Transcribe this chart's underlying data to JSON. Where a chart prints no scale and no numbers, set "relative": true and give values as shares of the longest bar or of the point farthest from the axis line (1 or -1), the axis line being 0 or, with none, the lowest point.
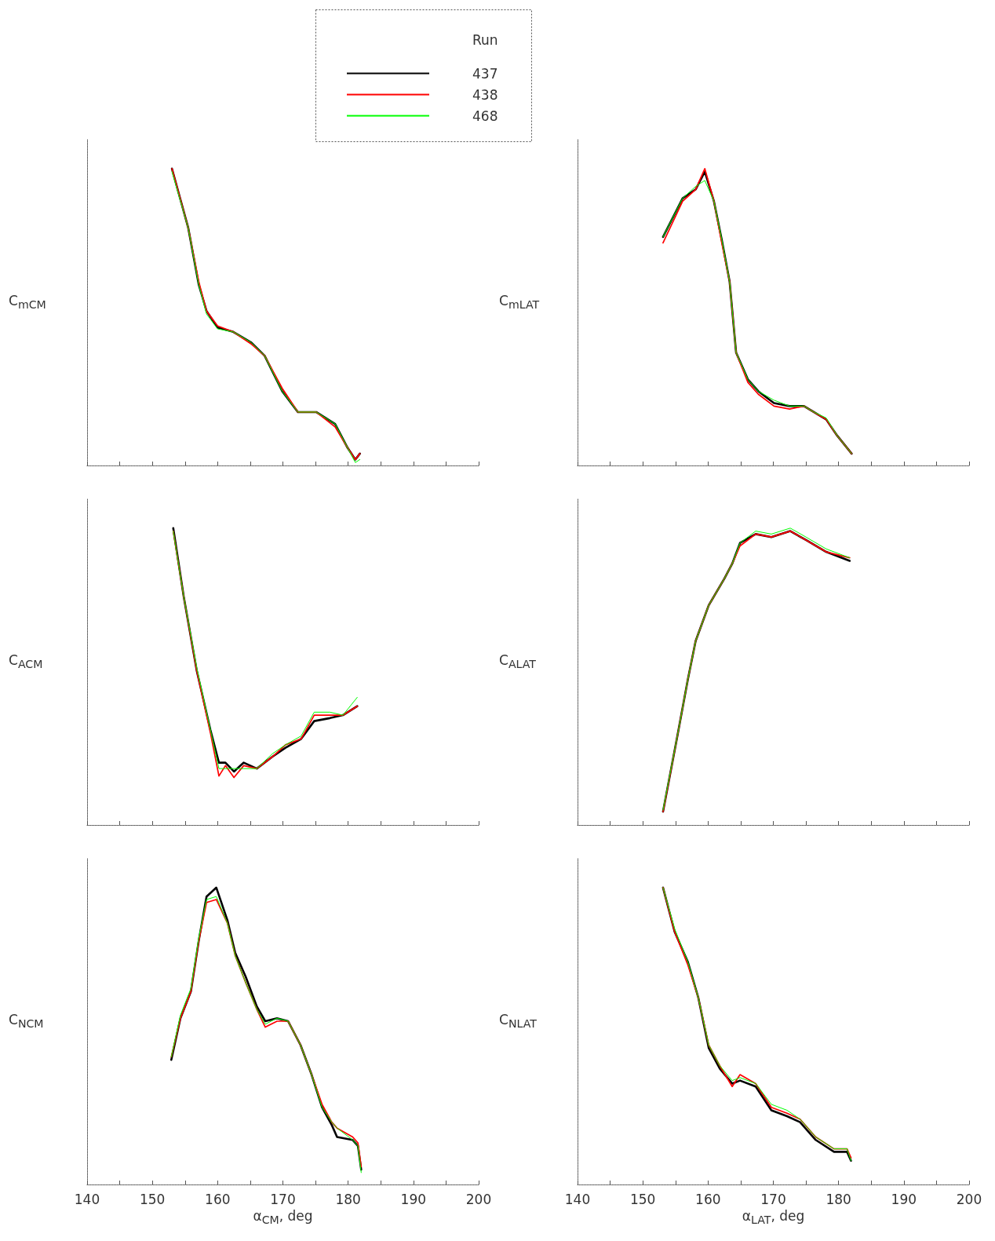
{
  "chart_data": [
    {
      "type": "line",
      "relative": true,
      "ylabel": "C$_{mCM}$",
      "legend": "top",
      "legend_title": "Run",
      "marker": "none",
      "grid": false,
      "tick_labels": false,
      "xlim": [
        140,
        200
      ],
      "xticks": [
        140,
        {
          "value": 145,
          "label": null
        },
        150,
        {
          "value": 155,
          "label": null
        },
        160,
        {
          "value": 165,
          "label": null
        },
        170,
        {
          "value": 175,
          "label": null
        },
        180,
        {
          "value": 185,
          "label": null
        },
        190,
        {
          "value": 195,
          "label": null
        },
        200
      ],
      "x": [
        153,
        155.5,
        157.1,
        158.3,
        160,
        162.4,
        165.1,
        167.2,
        169.9,
        172.3,
        175.1,
        178,
        179.9,
        181.1,
        181.8
      ],
      "series": [
        {
          "name": "437",
          "color": "#000000",
          "values": [
            1.0,
            0.8,
            0.61,
            0.52,
            0.465,
            0.45,
            0.415,
            0.37,
            0.25,
            0.18,
            0.18,
            0.14,
            0.06,
            0.02,
            0.04
          ]
        },
        {
          "name": "438",
          "color": "#ff0000",
          "values": [
            1.0,
            0.8,
            0.62,
            0.52,
            0.47,
            0.45,
            0.41,
            0.37,
            0.26,
            0.18,
            0.18,
            0.13,
            0.06,
            0.02,
            0.04
          ]
        },
        {
          "name": "468",
          "color": "#00ff00",
          "values": [
            0.99,
            0.8,
            0.61,
            0.51,
            0.46,
            0.45,
            0.415,
            0.37,
            0.25,
            0.18,
            0.18,
            0.14,
            0.06,
            0.01,
            0.02
          ]
        }
      ]
    },
    {
      "type": "line",
      "relative": true,
      "ylabel": "C$_{mLAT}$",
      "marker": "none",
      "grid": false,
      "tick_labels": false,
      "xlim": [
        140,
        200
      ],
      "xticks": [
        140,
        {
          "value": 145,
          "label": null
        },
        150,
        {
          "value": 155,
          "label": null
        },
        160,
        {
          "value": 165,
          "label": null
        },
        170,
        {
          "value": 175,
          "label": null
        },
        180,
        {
          "value": 185,
          "label": null
        },
        190,
        {
          "value": 195,
          "label": null
        },
        200
      ],
      "x": [
        153.1,
        156.1,
        158.1,
        159.5,
        160.9,
        162.1,
        163.3,
        164.3,
        166.1,
        167.7,
        170.1,
        172.5,
        174.7,
        176.2,
        178.1,
        179.8,
        182
      ],
      "series": [
        {
          "color": "#000000",
          "values": [
            0.77,
            0.9,
            0.93,
            0.99,
            0.89,
            0.76,
            0.62,
            0.38,
            0.29,
            0.25,
            0.21,
            0.2,
            0.2,
            0.18,
            0.155,
            0.1,
            0.04
          ]
        },
        {
          "color": "#ff0000",
          "values": [
            0.75,
            0.89,
            0.93,
            1.0,
            0.89,
            0.75,
            0.62,
            0.38,
            0.28,
            0.24,
            0.2,
            0.19,
            0.2,
            0.18,
            0.155,
            0.1,
            0.04
          ]
        },
        {
          "color": "#00ff00",
          "values": [
            0.77,
            0.9,
            0.94,
            0.96,
            0.89,
            0.76,
            0.62,
            0.38,
            0.29,
            0.25,
            0.22,
            0.2,
            0.2,
            0.18,
            0.16,
            0.1,
            0.04
          ]
        }
      ]
    },
    {
      "type": "line",
      "relative": true,
      "ylabel": "C$_{ACM}$",
      "marker": "none",
      "grid": false,
      "tick_labels": false,
      "xlim": [
        140,
        200
      ],
      "xticks": [
        140,
        {
          "value": 145,
          "label": null
        },
        150,
        {
          "value": 155,
          "label": null
        },
        160,
        {
          "value": 165,
          "label": null
        },
        170,
        {
          "value": 175,
          "label": null
        },
        180,
        {
          "value": 185,
          "label": null
        },
        190,
        {
          "value": 195,
          "label": null
        },
        200
      ],
      "x": [
        153.2,
        154.8,
        156.8,
        158.9,
        160.2,
        161.2,
        162.5,
        164,
        166,
        168.4,
        170.4,
        172.8,
        174.8,
        177.2,
        179.2,
        181.4
      ],
      "series": [
        {
          "color": "#000000",
          "values": [
            1.0,
            0.77,
            0.52,
            0.32,
            0.21,
            0.21,
            0.18,
            0.21,
            0.19,
            0.23,
            0.26,
            0.29,
            0.35,
            0.36,
            0.37,
            0.4
          ]
        },
        {
          "color": "#ff0000",
          "values": [
            0.99,
            0.77,
            0.52,
            0.31,
            0.165,
            0.2,
            0.16,
            0.2,
            0.19,
            0.23,
            0.27,
            0.29,
            0.37,
            0.37,
            0.37,
            0.4
          ]
        },
        {
          "color": "#00ff00",
          "values": [
            0.99,
            0.77,
            0.53,
            0.32,
            0.19,
            0.19,
            0.19,
            0.19,
            0.19,
            0.24,
            0.27,
            0.3,
            0.38,
            0.38,
            0.37,
            0.43
          ]
        }
      ]
    },
    {
      "type": "line",
      "relative": true,
      "ylabel": "C$_{ALAT}$",
      "marker": "none",
      "grid": false,
      "tick_labels": false,
      "xlim": [
        140,
        200
      ],
      "xticks": [
        140,
        {
          "value": 145,
          "label": null
        },
        150,
        {
          "value": 155,
          "label": null
        },
        160,
        {
          "value": 165,
          "label": null
        },
        170,
        {
          "value": 175,
          "label": null
        },
        180,
        {
          "value": 185,
          "label": null
        },
        190,
        {
          "value": 195,
          "label": null
        },
        200
      ],
      "x": [
        153.1,
        155.3,
        156.9,
        158.1,
        160.1,
        162.5,
        163.7,
        164.9,
        167.3,
        169.7,
        172.6,
        175,
        178.1,
        181.7
      ],
      "series": [
        {
          "color": "#000000",
          "values": [
            0.045,
            0.3,
            0.49,
            0.62,
            0.74,
            0.83,
            0.88,
            0.95,
            0.98,
            0.97,
            0.99,
            0.96,
            0.92,
            0.89
          ]
        },
        {
          "color": "#ff0000",
          "values": [
            0.045,
            0.3,
            0.49,
            0.62,
            0.74,
            0.83,
            0.88,
            0.94,
            0.98,
            0.97,
            0.99,
            0.96,
            0.92,
            0.9
          ]
        },
        {
          "color": "#00ff00",
          "values": [
            0.05,
            0.3,
            0.49,
            0.62,
            0.74,
            0.83,
            0.88,
            0.95,
            0.99,
            0.98,
            1.0,
            0.97,
            0.93,
            0.9
          ]
        }
      ]
    },
    {
      "type": "line",
      "relative": true,
      "ylabel": "C$_{NCM}$",
      "xlabel": "α$_{CM}$, deg",
      "marker": "none",
      "grid": false,
      "tick_labels": "x",
      "xlim": [
        140,
        200
      ],
      "xticks": [
        140,
        {
          "value": 145,
          "label": null
        },
        150,
        {
          "value": 155,
          "label": null
        },
        160,
        {
          "value": 165,
          "label": null
        },
        170,
        {
          "value": 175,
          "label": null
        },
        180,
        {
          "value": 185,
          "label": null
        },
        190,
        {
          "value": 195,
          "label": null
        },
        200
      ],
      "x": [
        152.9,
        154.3,
        155.9,
        157.1,
        158.3,
        159.8,
        161.5,
        162.7,
        164.3,
        166,
        167.3,
        169.1,
        170.8,
        172.7,
        174.4,
        176,
        177.5,
        178.3,
        180.7,
        181.5,
        182
      ],
      "series": [
        {
          "color": "#000000",
          "values": [
            0.42,
            0.56,
            0.65,
            0.82,
            0.97,
            1.0,
            0.89,
            0.78,
            0.7,
            0.6,
            0.55,
            0.56,
            0.55,
            0.47,
            0.37,
            0.26,
            0.2,
            0.16,
            0.15,
            0.13,
            0.05
          ]
        },
        {
          "color": "#ff0000",
          "values": [
            0.43,
            0.56,
            0.65,
            0.82,
            0.95,
            0.96,
            0.88,
            0.77,
            0.68,
            0.59,
            0.53,
            0.55,
            0.55,
            0.47,
            0.37,
            0.27,
            0.21,
            0.19,
            0.16,
            0.14,
            0.06
          ]
        },
        {
          "color": "#00ff00",
          "values": [
            0.43,
            0.57,
            0.66,
            0.83,
            0.96,
            0.97,
            0.88,
            0.77,
            0.68,
            0.59,
            0.54,
            0.56,
            0.55,
            0.47,
            0.37,
            0.26,
            0.21,
            0.19,
            0.15,
            0.13,
            0.04
          ]
        }
      ]
    },
    {
      "type": "line",
      "relative": true,
      "ylabel": "C$_{NLAT}$",
      "xlabel": "α$_{LAT}$, deg",
      "marker": "none",
      "grid": false,
      "tick_labels": "x",
      "xlim": [
        140,
        200
      ],
      "xticks": [
        140,
        {
          "value": 145,
          "label": null
        },
        150,
        {
          "value": 155,
          "label": null
        },
        160,
        {
          "value": 165,
          "label": null
        },
        170,
        {
          "value": 175,
          "label": null
        },
        180,
        {
          "value": 185,
          "label": null
        },
        190,
        {
          "value": 195,
          "label": null
        },
        200
      ],
      "x": [
        153.1,
        154.9,
        156.9,
        158.5,
        160.1,
        161.8,
        163.7,
        164.9,
        167.3,
        169.7,
        172.1,
        174.1,
        176.5,
        179.3,
        181.3,
        181.9
      ],
      "series": [
        {
          "color": "#000000",
          "values": [
            1.0,
            0.85,
            0.75,
            0.63,
            0.46,
            0.39,
            0.34,
            0.35,
            0.33,
            0.25,
            0.23,
            0.21,
            0.15,
            0.11,
            0.11,
            0.08
          ]
        },
        {
          "color": "#ff0000",
          "values": [
            1.0,
            0.85,
            0.74,
            0.63,
            0.47,
            0.4,
            0.33,
            0.37,
            0.34,
            0.26,
            0.24,
            0.22,
            0.16,
            0.12,
            0.12,
            0.09
          ]
        },
        {
          "color": "#00ff00",
          "values": [
            1.0,
            0.86,
            0.75,
            0.63,
            0.47,
            0.4,
            0.35,
            0.36,
            0.34,
            0.27,
            0.25,
            0.22,
            0.16,
            0.12,
            0.12,
            0.08
          ]
        }
      ]
    }
  ]
}
